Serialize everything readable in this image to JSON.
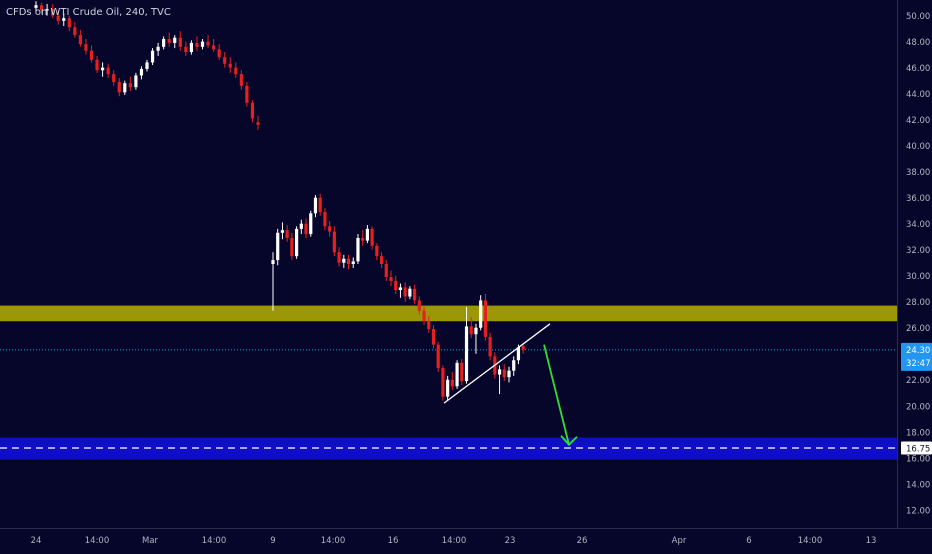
{
  "chart_data": {
    "type": "candlestick",
    "title": "CFDs on WTI Crude Oil, 240, TVC",
    "xlabel": "",
    "ylabel": "",
    "ylim": [
      10.6,
      51.2
    ],
    "y_ticks": [
      12,
      14,
      16,
      18,
      20,
      22,
      24,
      26,
      28,
      30,
      32,
      34,
      36,
      38,
      40,
      42,
      44,
      46,
      48,
      50
    ],
    "x_ticks": [
      "24",
      "14:00",
      "Mar",
      "14:00",
      "9",
      "14:00",
      "16",
      "14:00",
      "23",
      "26",
      "Apr",
      "6",
      "14:00",
      "13"
    ],
    "grid": true,
    "legend": "none",
    "colors": {
      "up": "#ffffff",
      "down": "#e5201f",
      "zone": "#b7b100",
      "demand_zone": "#1010d8",
      "arrow": "#33dd33",
      "price_line": "#2196f3"
    },
    "series": [
      {
        "candles": [
          [
            50.6,
            51.1,
            50.2,
            50.8
          ],
          [
            50.8,
            51.0,
            50.1,
            50.4
          ],
          [
            50.4,
            50.9,
            50.0,
            50.5
          ],
          [
            50.5,
            50.9,
            49.8,
            50.0
          ],
          [
            50.0,
            50.4,
            49.3,
            49.6
          ],
          [
            49.6,
            50.2,
            49.2,
            49.8
          ],
          [
            49.8,
            50.0,
            48.8,
            49.1
          ],
          [
            49.1,
            49.5,
            48.3,
            48.5
          ],
          [
            48.5,
            48.9,
            47.6,
            47.8
          ],
          [
            47.8,
            48.2,
            47.0,
            47.3
          ],
          [
            47.3,
            47.7,
            46.4,
            46.6
          ],
          [
            46.6,
            46.9,
            45.6,
            45.8
          ],
          [
            45.8,
            46.4,
            45.3,
            46.0
          ],
          [
            46.0,
            46.3,
            45.2,
            45.5
          ],
          [
            45.5,
            45.8,
            44.6,
            44.9
          ],
          [
            44.9,
            45.2,
            43.8,
            44.1
          ],
          [
            44.1,
            45.0,
            43.9,
            44.8
          ],
          [
            44.8,
            45.3,
            44.2,
            44.5
          ],
          [
            44.5,
            45.6,
            44.3,
            45.4
          ],
          [
            45.4,
            46.1,
            45.1,
            45.9
          ],
          [
            45.9,
            46.6,
            45.7,
            46.4
          ],
          [
            46.4,
            47.5,
            46.2,
            47.3
          ],
          [
            47.3,
            47.9,
            46.9,
            47.6
          ],
          [
            47.6,
            48.4,
            47.4,
            48.2
          ],
          [
            48.2,
            48.7,
            47.6,
            47.9
          ],
          [
            47.9,
            48.5,
            47.5,
            48.3
          ],
          [
            48.3,
            48.8,
            47.3,
            47.6
          ],
          [
            47.6,
            48.0,
            46.9,
            47.2
          ],
          [
            47.2,
            48.1,
            47.0,
            47.9
          ],
          [
            47.9,
            48.4,
            47.3,
            47.6
          ],
          [
            47.6,
            48.2,
            47.4,
            48.0
          ],
          [
            48.0,
            48.5,
            47.5,
            47.7
          ],
          [
            47.7,
            48.2,
            47.2,
            47.4
          ],
          [
            47.4,
            47.8,
            46.6,
            46.8
          ],
          [
            46.8,
            47.2,
            46.0,
            46.3
          ],
          [
            46.3,
            46.8,
            45.6,
            46.0
          ],
          [
            46.0,
            46.4,
            45.2,
            45.5
          ],
          [
            45.5,
            45.8,
            44.3,
            44.6
          ],
          [
            44.6,
            44.9,
            43.0,
            43.3
          ],
          [
            43.3,
            43.5,
            41.8,
            42.1
          ],
          [
            41.8,
            42.3,
            41.2,
            41.6
          ],
          [
            30.9,
            31.8,
            27.3,
            31.2
          ],
          [
            31.2,
            33.6,
            30.8,
            33.3
          ],
          [
            33.3,
            34.1,
            32.8,
            33.5
          ],
          [
            33.5,
            33.9,
            32.6,
            32.9
          ],
          [
            32.9,
            33.3,
            31.2,
            31.5
          ],
          [
            31.5,
            33.8,
            31.3,
            33.6
          ],
          [
            33.6,
            34.3,
            33.2,
            34.0
          ],
          [
            34.0,
            34.4,
            32.9,
            33.2
          ],
          [
            33.2,
            35.0,
            33.0,
            34.8
          ],
          [
            34.8,
            36.2,
            34.5,
            36.0
          ],
          [
            36.0,
            36.3,
            34.6,
            34.9
          ],
          [
            34.9,
            35.2,
            33.5,
            33.8
          ],
          [
            33.8,
            34.2,
            33.0,
            33.4
          ],
          [
            33.4,
            33.8,
            31.5,
            31.8
          ],
          [
            31.8,
            32.2,
            30.7,
            31.0
          ],
          [
            31.0,
            31.6,
            30.6,
            31.3
          ],
          [
            31.3,
            31.6,
            30.5,
            30.9
          ],
          [
            30.9,
            31.4,
            30.6,
            31.1
          ],
          [
            31.1,
            33.2,
            30.9,
            32.9
          ],
          [
            32.9,
            33.5,
            32.3,
            32.7
          ],
          [
            32.7,
            33.9,
            32.5,
            33.6
          ],
          [
            33.6,
            33.8,
            32.0,
            32.3
          ],
          [
            32.3,
            32.5,
            31.2,
            31.5
          ],
          [
            31.5,
            31.8,
            30.6,
            30.9
          ],
          [
            30.9,
            31.2,
            29.6,
            29.9
          ],
          [
            29.9,
            30.4,
            29.2,
            29.6
          ],
          [
            29.6,
            30.0,
            28.6,
            28.9
          ],
          [
            28.9,
            29.4,
            28.3,
            29.1
          ],
          [
            29.1,
            29.5,
            28.0,
            28.4
          ],
          [
            28.4,
            29.2,
            28.2,
            29.0
          ],
          [
            29.0,
            29.3,
            27.8,
            28.1
          ],
          [
            28.1,
            28.4,
            27.0,
            27.3
          ],
          [
            27.3,
            27.6,
            26.2,
            26.5
          ],
          [
            26.5,
            26.9,
            25.6,
            25.9
          ],
          [
            25.9,
            26.2,
            24.4,
            24.7
          ],
          [
            24.7,
            24.9,
            22.6,
            22.9
          ],
          [
            22.9,
            23.1,
            20.4,
            20.7
          ],
          [
            20.7,
            22.3,
            20.4,
            22.0
          ],
          [
            22.0,
            22.6,
            21.2,
            21.5
          ],
          [
            21.5,
            23.5,
            21.3,
            23.3
          ],
          [
            23.3,
            23.6,
            21.6,
            21.9
          ],
          [
            21.9,
            27.6,
            21.7,
            26.1
          ],
          [
            26.1,
            26.8,
            25.2,
            25.5
          ],
          [
            25.5,
            26.3,
            24.0,
            26.0
          ],
          [
            26.0,
            28.5,
            25.8,
            28.1
          ],
          [
            28.1,
            28.6,
            25.0,
            25.3
          ],
          [
            25.3,
            25.6,
            23.5,
            23.8
          ],
          [
            23.8,
            24.1,
            22.1,
            22.4
          ],
          [
            22.4,
            23.1,
            20.9,
            22.8
          ],
          [
            22.8,
            23.2,
            21.9,
            22.2
          ],
          [
            22.2,
            23.0,
            21.8,
            22.7
          ],
          [
            22.7,
            23.8,
            22.3,
            23.5
          ],
          [
            23.5,
            24.7,
            23.2,
            24.5
          ],
          [
            24.6,
            24.8,
            24.0,
            24.3
          ]
        ]
      }
    ],
    "horizontal_lines": [
      {
        "label": "24.30",
        "value": 24.3,
        "color": "#2196f3"
      },
      {
        "label": "16.75",
        "value": 16.75,
        "color": "#ffffff"
      }
    ],
    "zones": [
      {
        "from": 26.5,
        "to": 27.7,
        "color": "#b7b100"
      },
      {
        "from": 15.85,
        "to": 17.55,
        "color": "#1010d8"
      }
    ],
    "trendline": {
      "from": [
        20.2
      ],
      "to": [
        26.3
      ]
    },
    "arrow": {
      "from": [
        24.7
      ],
      "to": [
        17.0
      ]
    },
    "price_badge": {
      "value": "24.30",
      "countdown": "32:47"
    }
  }
}
